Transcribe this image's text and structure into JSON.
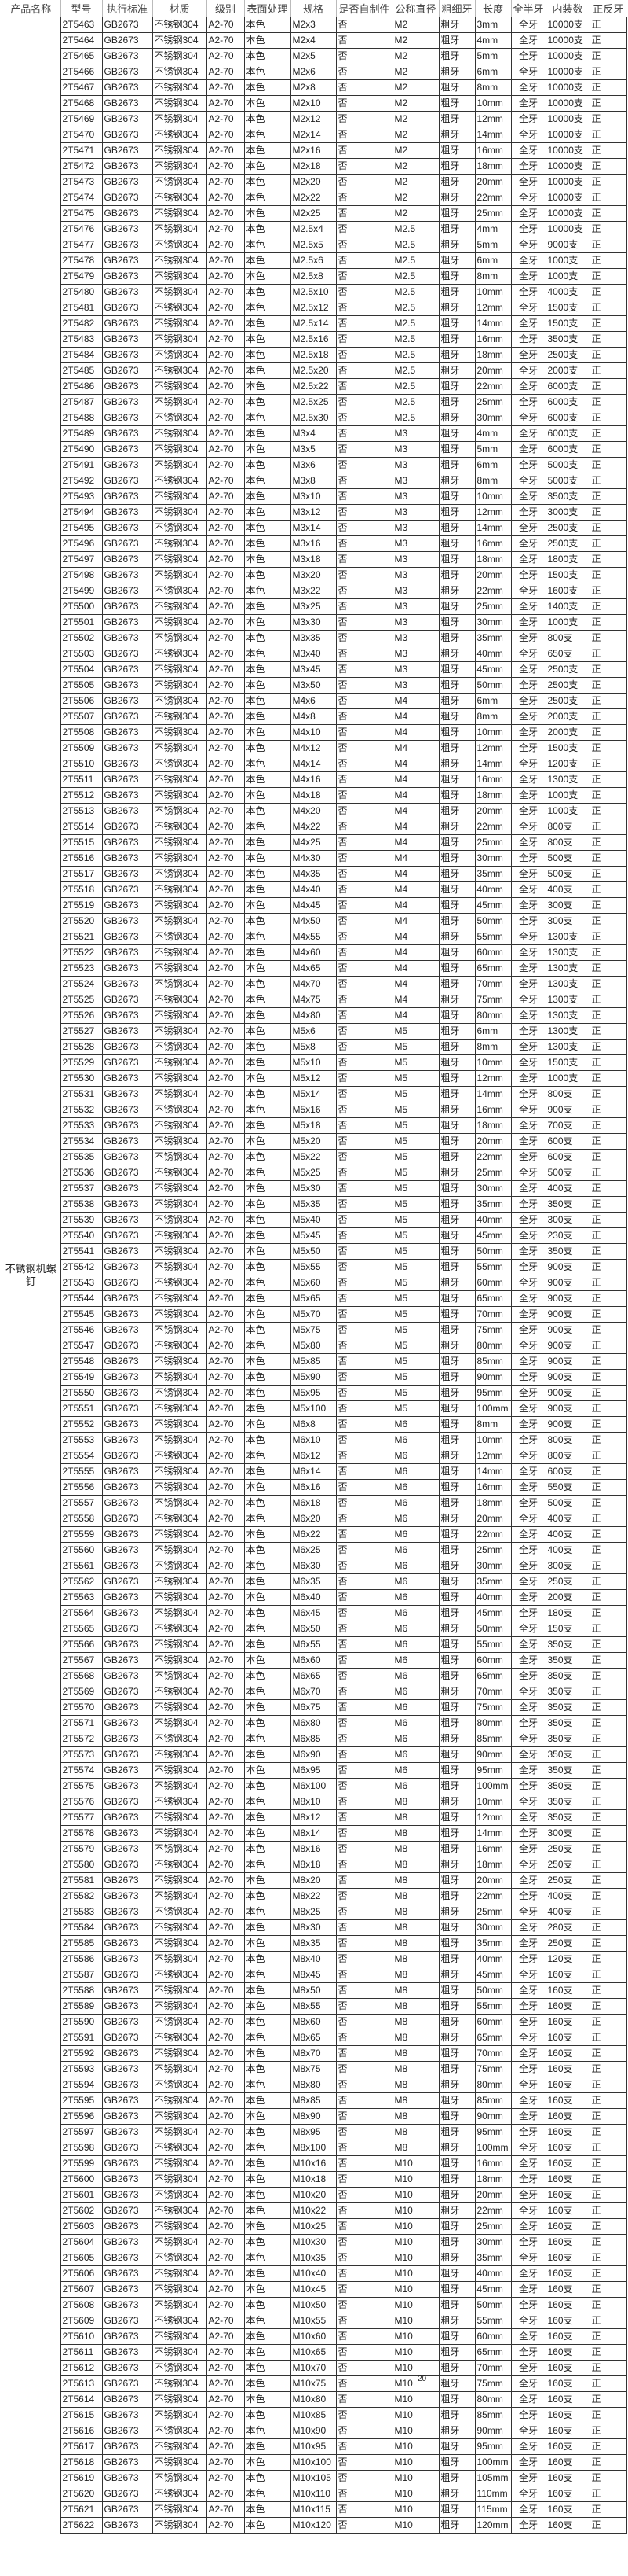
{
  "headers": [
    "产品名称",
    "型号",
    "执行标准",
    "材质",
    "级别",
    "表面处理",
    "规格",
    "是否自制件",
    "公称直径",
    "粗细牙",
    "长度",
    "全半牙",
    "内装数",
    "正反牙"
  ],
  "product_name": "不锈钢机螺钉",
  "common": {
    "standard": "GB2673",
    "material": "不锈钢304",
    "grade": "A2-70",
    "finish": "本色",
    "self_made": "否",
    "thread": "粗牙",
    "full_half": "全牙",
    "hand": "正"
  },
  "page_marker": "20",
  "rows": [
    [
      "2T5463",
      "M2x3",
      "M2",
      "3mm",
      "10000支"
    ],
    [
      "2T5464",
      "M2x4",
      "M2",
      "4mm",
      "10000支"
    ],
    [
      "2T5465",
      "M2x5",
      "M2",
      "5mm",
      "10000支"
    ],
    [
      "2T5466",
      "M2x6",
      "M2",
      "6mm",
      "10000支"
    ],
    [
      "2T5467",
      "M2x8",
      "M2",
      "8mm",
      "10000支"
    ],
    [
      "2T5468",
      "M2x10",
      "M2",
      "10mm",
      "10000支"
    ],
    [
      "2T5469",
      "M2x12",
      "M2",
      "12mm",
      "10000支"
    ],
    [
      "2T5470",
      "M2x14",
      "M2",
      "14mm",
      "10000支"
    ],
    [
      "2T5471",
      "M2x16",
      "M2",
      "16mm",
      "10000支"
    ],
    [
      "2T5472",
      "M2x18",
      "M2",
      "18mm",
      "10000支"
    ],
    [
      "2T5473",
      "M2x20",
      "M2",
      "20mm",
      "10000支"
    ],
    [
      "2T5474",
      "M2x22",
      "M2",
      "22mm",
      "10000支"
    ],
    [
      "2T5475",
      "M2x25",
      "M2",
      "25mm",
      "10000支"
    ],
    [
      "2T5476",
      "M2.5x4",
      "M2.5",
      "4mm",
      "10000支"
    ],
    [
      "2T5477",
      "M2.5x5",
      "M2.5",
      "5mm",
      "9000支"
    ],
    [
      "2T5478",
      "M2.5x6",
      "M2.5",
      "6mm",
      "1000支"
    ],
    [
      "2T5479",
      "M2.5x8",
      "M2.5",
      "8mm",
      "1000支"
    ],
    [
      "2T5480",
      "M2.5x10",
      "M2.5",
      "10mm",
      "4000支"
    ],
    [
      "2T5481",
      "M2.5x12",
      "M2.5",
      "12mm",
      "1500支"
    ],
    [
      "2T5482",
      "M2.5x14",
      "M2.5",
      "14mm",
      "1500支"
    ],
    [
      "2T5483",
      "M2.5x16",
      "M2.5",
      "16mm",
      "3500支"
    ],
    [
      "2T5484",
      "M2.5x18",
      "M2.5",
      "18mm",
      "2500支"
    ],
    [
      "2T5485",
      "M2.5x20",
      "M2.5",
      "20mm",
      "2000支"
    ],
    [
      "2T5486",
      "M2.5x22",
      "M2.5",
      "22mm",
      "6000支"
    ],
    [
      "2T5487",
      "M2.5x25",
      "M2.5",
      "25mm",
      "6000支"
    ],
    [
      "2T5488",
      "M2.5x30",
      "M2.5",
      "30mm",
      "6000支"
    ],
    [
      "2T5489",
      "M3x4",
      "M3",
      "4mm",
      "6000支"
    ],
    [
      "2T5490",
      "M3x5",
      "M3",
      "5mm",
      "6000支"
    ],
    [
      "2T5491",
      "M3x6",
      "M3",
      "6mm",
      "5000支"
    ],
    [
      "2T5492",
      "M3x8",
      "M3",
      "8mm",
      "5000支"
    ],
    [
      "2T5493",
      "M3x10",
      "M3",
      "10mm",
      "3500支"
    ],
    [
      "2T5494",
      "M3x12",
      "M3",
      "12mm",
      "3000支"
    ],
    [
      "2T5495",
      "M3x14",
      "M3",
      "14mm",
      "2500支"
    ],
    [
      "2T5496",
      "M3x16",
      "M3",
      "16mm",
      "2500支"
    ],
    [
      "2T5497",
      "M3x18",
      "M3",
      "18mm",
      "1800支"
    ],
    [
      "2T5498",
      "M3x20",
      "M3",
      "20mm",
      "1500支"
    ],
    [
      "2T5499",
      "M3x22",
      "M3",
      "22mm",
      "1600支"
    ],
    [
      "2T5500",
      "M3x25",
      "M3",
      "25mm",
      "1400支"
    ],
    [
      "2T5501",
      "M3x30",
      "M3",
      "30mm",
      "1000支"
    ],
    [
      "2T5502",
      "M3x35",
      "M3",
      "35mm",
      "800支"
    ],
    [
      "2T5503",
      "M3x40",
      "M3",
      "40mm",
      "650支"
    ],
    [
      "2T5504",
      "M3x45",
      "M3",
      "45mm",
      "2500支"
    ],
    [
      "2T5505",
      "M3x50",
      "M3",
      "50mm",
      "2500支"
    ],
    [
      "2T5506",
      "M4x6",
      "M4",
      "6mm",
      "2500支"
    ],
    [
      "2T5507",
      "M4x8",
      "M4",
      "8mm",
      "2000支"
    ],
    [
      "2T5508",
      "M4x10",
      "M4",
      "10mm",
      "2000支"
    ],
    [
      "2T5509",
      "M4x12",
      "M4",
      "12mm",
      "1500支"
    ],
    [
      "2T5510",
      "M4x14",
      "M4",
      "14mm",
      "1200支"
    ],
    [
      "2T5511",
      "M4x16",
      "M4",
      "16mm",
      "1300支"
    ],
    [
      "2T5512",
      "M4x18",
      "M4",
      "18mm",
      "1000支"
    ],
    [
      "2T5513",
      "M4x20",
      "M4",
      "20mm",
      "1000支"
    ],
    [
      "2T5514",
      "M4x22",
      "M4",
      "22mm",
      "800支"
    ],
    [
      "2T5515",
      "M4x25",
      "M4",
      "25mm",
      "800支"
    ],
    [
      "2T5516",
      "M4x30",
      "M4",
      "30mm",
      "500支"
    ],
    [
      "2T5517",
      "M4x35",
      "M4",
      "35mm",
      "500支"
    ],
    [
      "2T5518",
      "M4x40",
      "M4",
      "40mm",
      "400支"
    ],
    [
      "2T5519",
      "M4x45",
      "M4",
      "45mm",
      "300支"
    ],
    [
      "2T5520",
      "M4x50",
      "M4",
      "50mm",
      "300支"
    ],
    [
      "2T5521",
      "M4x55",
      "M4",
      "55mm",
      "1300支"
    ],
    [
      "2T5522",
      "M4x60",
      "M4",
      "60mm",
      "1300支"
    ],
    [
      "2T5523",
      "M4x65",
      "M4",
      "65mm",
      "1300支"
    ],
    [
      "2T5524",
      "M4x70",
      "M4",
      "70mm",
      "1300支"
    ],
    [
      "2T5525",
      "M4x75",
      "M4",
      "75mm",
      "1300支"
    ],
    [
      "2T5526",
      "M4x80",
      "M4",
      "80mm",
      "1300支"
    ],
    [
      "2T5527",
      "M5x6",
      "M5",
      "6mm",
      "1300支"
    ],
    [
      "2T5528",
      "M5x8",
      "M5",
      "8mm",
      "1300支"
    ],
    [
      "2T5529",
      "M5x10",
      "M5",
      "10mm",
      "1500支"
    ],
    [
      "2T5530",
      "M5x12",
      "M5",
      "12mm",
      "1000支"
    ],
    [
      "2T5531",
      "M5x14",
      "M5",
      "14mm",
      "800支"
    ],
    [
      "2T5532",
      "M5x16",
      "M5",
      "16mm",
      "900支"
    ],
    [
      "2T5533",
      "M5x18",
      "M5",
      "18mm",
      "700支"
    ],
    [
      "2T5534",
      "M5x20",
      "M5",
      "20mm",
      "600支"
    ],
    [
      "2T5535",
      "M5x22",
      "M5",
      "22mm",
      "600支"
    ],
    [
      "2T5536",
      "M5x25",
      "M5",
      "25mm",
      "500支"
    ],
    [
      "2T5537",
      "M5x30",
      "M5",
      "30mm",
      "400支"
    ],
    [
      "2T5538",
      "M5x35",
      "M5",
      "35mm",
      "350支"
    ],
    [
      "2T5539",
      "M5x40",
      "M5",
      "40mm",
      "300支"
    ],
    [
      "2T5540",
      "M5x45",
      "M5",
      "45mm",
      "230支"
    ],
    [
      "2T5541",
      "M5x50",
      "M5",
      "50mm",
      "350支"
    ],
    [
      "2T5542",
      "M5x55",
      "M5",
      "55mm",
      "900支"
    ],
    [
      "2T5543",
      "M5x60",
      "M5",
      "60mm",
      "900支"
    ],
    [
      "2T5544",
      "M5x65",
      "M5",
      "65mm",
      "900支"
    ],
    [
      "2T5545",
      "M5x70",
      "M5",
      "70mm",
      "900支"
    ],
    [
      "2T5546",
      "M5x75",
      "M5",
      "75mm",
      "900支"
    ],
    [
      "2T5547",
      "M5x80",
      "M5",
      "80mm",
      "900支"
    ],
    [
      "2T5548",
      "M5x85",
      "M5",
      "85mm",
      "900支"
    ],
    [
      "2T5549",
      "M5x90",
      "M5",
      "90mm",
      "900支"
    ],
    [
      "2T5550",
      "M5x95",
      "M5",
      "95mm",
      "900支"
    ],
    [
      "2T5551",
      "M5x100",
      "M5",
      "100mm",
      "900支"
    ],
    [
      "2T5552",
      "M6x8",
      "M6",
      "8mm",
      "900支"
    ],
    [
      "2T5553",
      "M6x10",
      "M6",
      "10mm",
      "800支"
    ],
    [
      "2T5554",
      "M6x12",
      "M6",
      "12mm",
      "800支"
    ],
    [
      "2T5555",
      "M6x14",
      "M6",
      "14mm",
      "600支"
    ],
    [
      "2T5556",
      "M6x16",
      "M6",
      "16mm",
      "550支"
    ],
    [
      "2T5557",
      "M6x18",
      "M6",
      "18mm",
      "500支"
    ],
    [
      "2T5558",
      "M6x20",
      "M6",
      "20mm",
      "400支"
    ],
    [
      "2T5559",
      "M6x22",
      "M6",
      "22mm",
      "400支"
    ],
    [
      "2T5560",
      "M6x25",
      "M6",
      "25mm",
      "400支"
    ],
    [
      "2T5561",
      "M6x30",
      "M6",
      "30mm",
      "300支"
    ],
    [
      "2T5562",
      "M6x35",
      "M6",
      "35mm",
      "250支"
    ],
    [
      "2T5563",
      "M6x40",
      "M6",
      "40mm",
      "200支"
    ],
    [
      "2T5564",
      "M6x45",
      "M6",
      "45mm",
      "180支"
    ],
    [
      "2T5565",
      "M6x50",
      "M6",
      "50mm",
      "150支"
    ],
    [
      "2T5566",
      "M6x55",
      "M6",
      "55mm",
      "350支"
    ],
    [
      "2T5567",
      "M6x60",
      "M6",
      "60mm",
      "350支"
    ],
    [
      "2T5568",
      "M6x65",
      "M6",
      "65mm",
      "350支"
    ],
    [
      "2T5569",
      "M6x70",
      "M6",
      "70mm",
      "350支"
    ],
    [
      "2T5570",
      "M6x75",
      "M6",
      "75mm",
      "350支"
    ],
    [
      "2T5571",
      "M6x80",
      "M6",
      "80mm",
      "350支"
    ],
    [
      "2T5572",
      "M6x85",
      "M6",
      "85mm",
      "350支"
    ],
    [
      "2T5573",
      "M6x90",
      "M6",
      "90mm",
      "350支"
    ],
    [
      "2T5574",
      "M6x95",
      "M6",
      "95mm",
      "350支"
    ],
    [
      "2T5575",
      "M6x100",
      "M6",
      "100mm",
      "350支"
    ],
    [
      "2T5576",
      "M8x10",
      "M8",
      "10mm",
      "350支"
    ],
    [
      "2T5577",
      "M8x12",
      "M8",
      "12mm",
      "350支"
    ],
    [
      "2T5578",
      "M8x14",
      "M8",
      "14mm",
      "300支"
    ],
    [
      "2T5579",
      "M8x16",
      "M8",
      "16mm",
      "250支"
    ],
    [
      "2T5580",
      "M8x18",
      "M8",
      "18mm",
      "250支"
    ],
    [
      "2T5581",
      "M8x20",
      "M8",
      "20mm",
      "250支"
    ],
    [
      "2T5582",
      "M8x22",
      "M8",
      "22mm",
      "400支"
    ],
    [
      "2T5583",
      "M8x25",
      "M8",
      "25mm",
      "400支"
    ],
    [
      "2T5584",
      "M8x30",
      "M8",
      "30mm",
      "280支"
    ],
    [
      "2T5585",
      "M8x35",
      "M8",
      "35mm",
      "250支"
    ],
    [
      "2T5586",
      "M8x40",
      "M8",
      "40mm",
      "120支"
    ],
    [
      "2T5587",
      "M8x45",
      "M8",
      "45mm",
      "160支"
    ],
    [
      "2T5588",
      "M8x50",
      "M8",
      "50mm",
      "160支"
    ],
    [
      "2T5589",
      "M8x55",
      "M8",
      "55mm",
      "160支"
    ],
    [
      "2T5590",
      "M8x60",
      "M8",
      "60mm",
      "160支"
    ],
    [
      "2T5591",
      "M8x65",
      "M8",
      "65mm",
      "160支"
    ],
    [
      "2T5592",
      "M8x70",
      "M8",
      "70mm",
      "160支"
    ],
    [
      "2T5593",
      "M8x75",
      "M8",
      "75mm",
      "160支"
    ],
    [
      "2T5594",
      "M8x80",
      "M8",
      "80mm",
      "160支"
    ],
    [
      "2T5595",
      "M8x85",
      "M8",
      "85mm",
      "160支"
    ],
    [
      "2T5596",
      "M8x90",
      "M8",
      "90mm",
      "160支"
    ],
    [
      "2T5597",
      "M8x95",
      "M8",
      "95mm",
      "160支"
    ],
    [
      "2T5598",
      "M8x100",
      "M8",
      "100mm",
      "160支"
    ],
    [
      "2T5599",
      "M10x16",
      "M10",
      "16mm",
      "160支"
    ],
    [
      "2T5600",
      "M10x18",
      "M10",
      "18mm",
      "160支"
    ],
    [
      "2T5601",
      "M10x20",
      "M10",
      "20mm",
      "160支"
    ],
    [
      "2T5602",
      "M10x22",
      "M10",
      "22mm",
      "160支"
    ],
    [
      "2T5603",
      "M10x25",
      "M10",
      "25mm",
      "160支"
    ],
    [
      "2T5604",
      "M10x30",
      "M10",
      "30mm",
      "160支"
    ],
    [
      "2T5605",
      "M10x35",
      "M10",
      "35mm",
      "160支"
    ],
    [
      "2T5606",
      "M10x40",
      "M10",
      "40mm",
      "160支"
    ],
    [
      "2T5607",
      "M10x45",
      "M10",
      "45mm",
      "160支"
    ],
    [
      "2T5608",
      "M10x50",
      "M10",
      "50mm",
      "160支"
    ],
    [
      "2T5609",
      "M10x55",
      "M10",
      "55mm",
      "160支"
    ],
    [
      "2T5610",
      "M10x60",
      "M10",
      "60mm",
      "160支"
    ],
    [
      "2T5611",
      "M10x65",
      "M10",
      "65mm",
      "160支"
    ],
    [
      "2T5612",
      "M10x70",
      "M10",
      "70mm",
      "160支"
    ],
    [
      "2T5613",
      "M10x75",
      "M10",
      "75mm",
      "160支"
    ],
    [
      "2T5614",
      "M10x80",
      "M10",
      "80mm",
      "160支"
    ],
    [
      "2T5615",
      "M10x85",
      "M10",
      "85mm",
      "160支"
    ],
    [
      "2T5616",
      "M10x90",
      "M10",
      "90mm",
      "160支"
    ],
    [
      "2T5617",
      "M10x95",
      "M10",
      "95mm",
      "160支"
    ],
    [
      "2T5618",
      "M10x100",
      "M10",
      "100mm",
      "160支"
    ],
    [
      "2T5619",
      "M10x105",
      "M10",
      "105mm",
      "160支"
    ],
    [
      "2T5620",
      "M10x110",
      "M10",
      "110mm",
      "160支"
    ],
    [
      "2T5621",
      "M10x115",
      "M10",
      "115mm",
      "160支"
    ],
    [
      "2T5622",
      "M10x120",
      "M10",
      "120mm",
      "160支"
    ]
  ]
}
